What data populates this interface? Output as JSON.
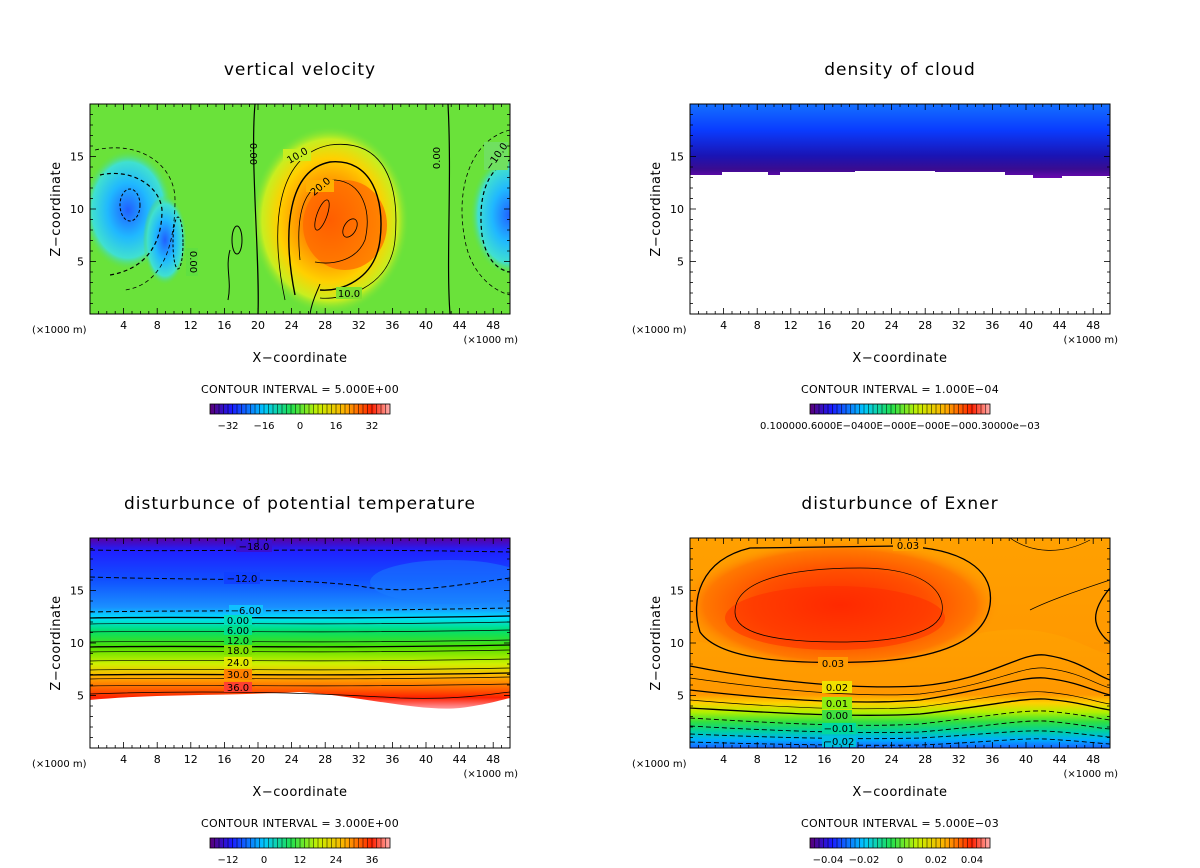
{
  "panels": [
    {
      "title": "vertical velocity",
      "xlabel": "X−coordinate",
      "ylabel": "Z−coordinate",
      "x_unit_left": "(×1000 m)",
      "x_unit_right": "(×1000 m)",
      "x_ticks": [
        "4",
        "8",
        "12",
        "16",
        "20",
        "24",
        "28",
        "32",
        "36",
        "40",
        "44",
        "48"
      ],
      "y_ticks": [
        "5",
        "10",
        "15"
      ],
      "contour_interval": "CONTOUR INTERVAL = 5.000E+00",
      "colorbar_ticks": [
        "−32",
        "−16",
        "0",
        "16",
        "32"
      ],
      "contour_labels": [
        "0.00",
        "10.0",
        "20.0",
        "0.00",
        "−10.0",
        "10.0",
        "0.00"
      ]
    },
    {
      "title": "density of cloud",
      "xlabel": "X−coordinate",
      "ylabel": "Z−coordinate",
      "x_unit_left": "(×1000 m)",
      "x_unit_right": "(×1000 m)",
      "x_ticks": [
        "4",
        "8",
        "12",
        "16",
        "20",
        "24",
        "28",
        "32",
        "36",
        "40",
        "44",
        "48"
      ],
      "y_ticks": [
        "5",
        "10",
        "15"
      ],
      "contour_interval": "CONTOUR INTERVAL = 1.000E−04",
      "colorbar_ticks_overlapped": "0.100000.6000E−0400E−000E−000E−000.30000e−03",
      "contour_labels": []
    },
    {
      "title": "disturbunce of potential temperature",
      "xlabel": "X−coordinate",
      "ylabel": "Z−coordinate",
      "x_unit_left": "(×1000 m)",
      "x_unit_right": "(×1000 m)",
      "x_ticks": [
        "4",
        "8",
        "12",
        "16",
        "20",
        "24",
        "28",
        "32",
        "36",
        "40",
        "44",
        "48"
      ],
      "y_ticks": [
        "5",
        "10",
        "15"
      ],
      "contour_interval": "CONTOUR INTERVAL = 3.000E+00",
      "colorbar_ticks": [
        "−12",
        "0",
        "12",
        "24",
        "36"
      ],
      "contour_labels": [
        "−18.0",
        "−12.0",
        "−6.00",
        "0.00",
        "6.00",
        "12.0",
        "18.0",
        "24.0",
        "30.0",
        "36.0"
      ]
    },
    {
      "title": "disturbunce of Exner",
      "xlabel": "X−coordinate",
      "ylabel": "Z−coordinate",
      "x_unit_left": "(×1000 m)",
      "x_unit_right": "(×1000 m)",
      "x_ticks": [
        "4",
        "8",
        "12",
        "16",
        "20",
        "24",
        "28",
        "32",
        "36",
        "40",
        "44",
        "48"
      ],
      "y_ticks": [
        "5",
        "10",
        "15"
      ],
      "contour_interval": "CONTOUR INTERVAL = 5.000E−03",
      "colorbar_ticks": [
        "−0.04",
        "−0.02",
        "0",
        "0.02",
        "0.04"
      ],
      "contour_labels": [
        "0.03",
        "0.03",
        "0.02",
        "0.01",
        "0.00",
        "−0.01",
        "−0.02"
      ]
    }
  ],
  "chart_data": [
    {
      "type": "heatmap",
      "title": "vertical velocity",
      "xlabel": "X−coordinate",
      "ylabel": "Z−coordinate",
      "xlim": [
        0,
        50
      ],
      "ylim": [
        0,
        20
      ],
      "color_range": [
        -32,
        32
      ],
      "contour_interval": 5.0,
      "features": [
        {
          "kind": "updraft_max",
          "x": 29,
          "z": 10,
          "value": 25
        },
        {
          "kind": "downdraft_min",
          "x": 10,
          "z": 9,
          "value": -20
        },
        {
          "kind": "downdraft_min",
          "x": 50,
          "z": 9,
          "value": -12
        }
      ]
    },
    {
      "type": "heatmap",
      "title": "density of cloud",
      "xlabel": "X−coordinate",
      "ylabel": "Z−coordinate",
      "xlim": [
        0,
        50
      ],
      "ylim": [
        0,
        20
      ],
      "contour_interval": 0.0001,
      "features": [
        {
          "kind": "cloud_layer",
          "z_bottom": 13,
          "z_top": 20
        }
      ]
    },
    {
      "type": "heatmap",
      "title": "disturbunce of potential temperature",
      "xlabel": "X−coordinate",
      "ylabel": "Z−coordinate",
      "xlim": [
        0,
        50
      ],
      "ylim": [
        0,
        20
      ],
      "color_range": [
        -18,
        40
      ],
      "contour_interval": 3.0,
      "contours": [
        {
          "value": -18.0,
          "z": 19.2
        },
        {
          "value": -12.0,
          "z": 17.0
        },
        {
          "value": -6.0,
          "z": 13.0
        },
        {
          "value": 0.0,
          "z": 12.0
        },
        {
          "value": 6.0,
          "z": 11.0
        },
        {
          "value": 12.0,
          "z": 10.0
        },
        {
          "value": 18.0,
          "z": 8.9
        },
        {
          "value": 24.0,
          "z": 7.8
        },
        {
          "value": 30.0,
          "z": 6.8
        },
        {
          "value": 36.0,
          "z": 5.6
        }
      ]
    },
    {
      "type": "heatmap",
      "title": "disturbunce of Exner",
      "xlabel": "X−coordinate",
      "ylabel": "Z−coordinate",
      "xlim": [
        0,
        50
      ],
      "ylim": [
        0,
        20
      ],
      "color_range": [
        -0.04,
        0.04
      ],
      "contour_interval": 0.005,
      "contours": [
        {
          "value": 0.03,
          "z": 8.0
        },
        {
          "value": 0.02,
          "z": 5.5
        },
        {
          "value": 0.01,
          "z": 3.6
        },
        {
          "value": 0.0,
          "z": 2.9
        },
        {
          "value": -0.01,
          "z": 1.8
        },
        {
          "value": -0.02,
          "z": 0.5
        }
      ],
      "features": [
        {
          "kind": "maximum",
          "x": 20,
          "z": 12,
          "value": 0.04
        }
      ]
    }
  ]
}
